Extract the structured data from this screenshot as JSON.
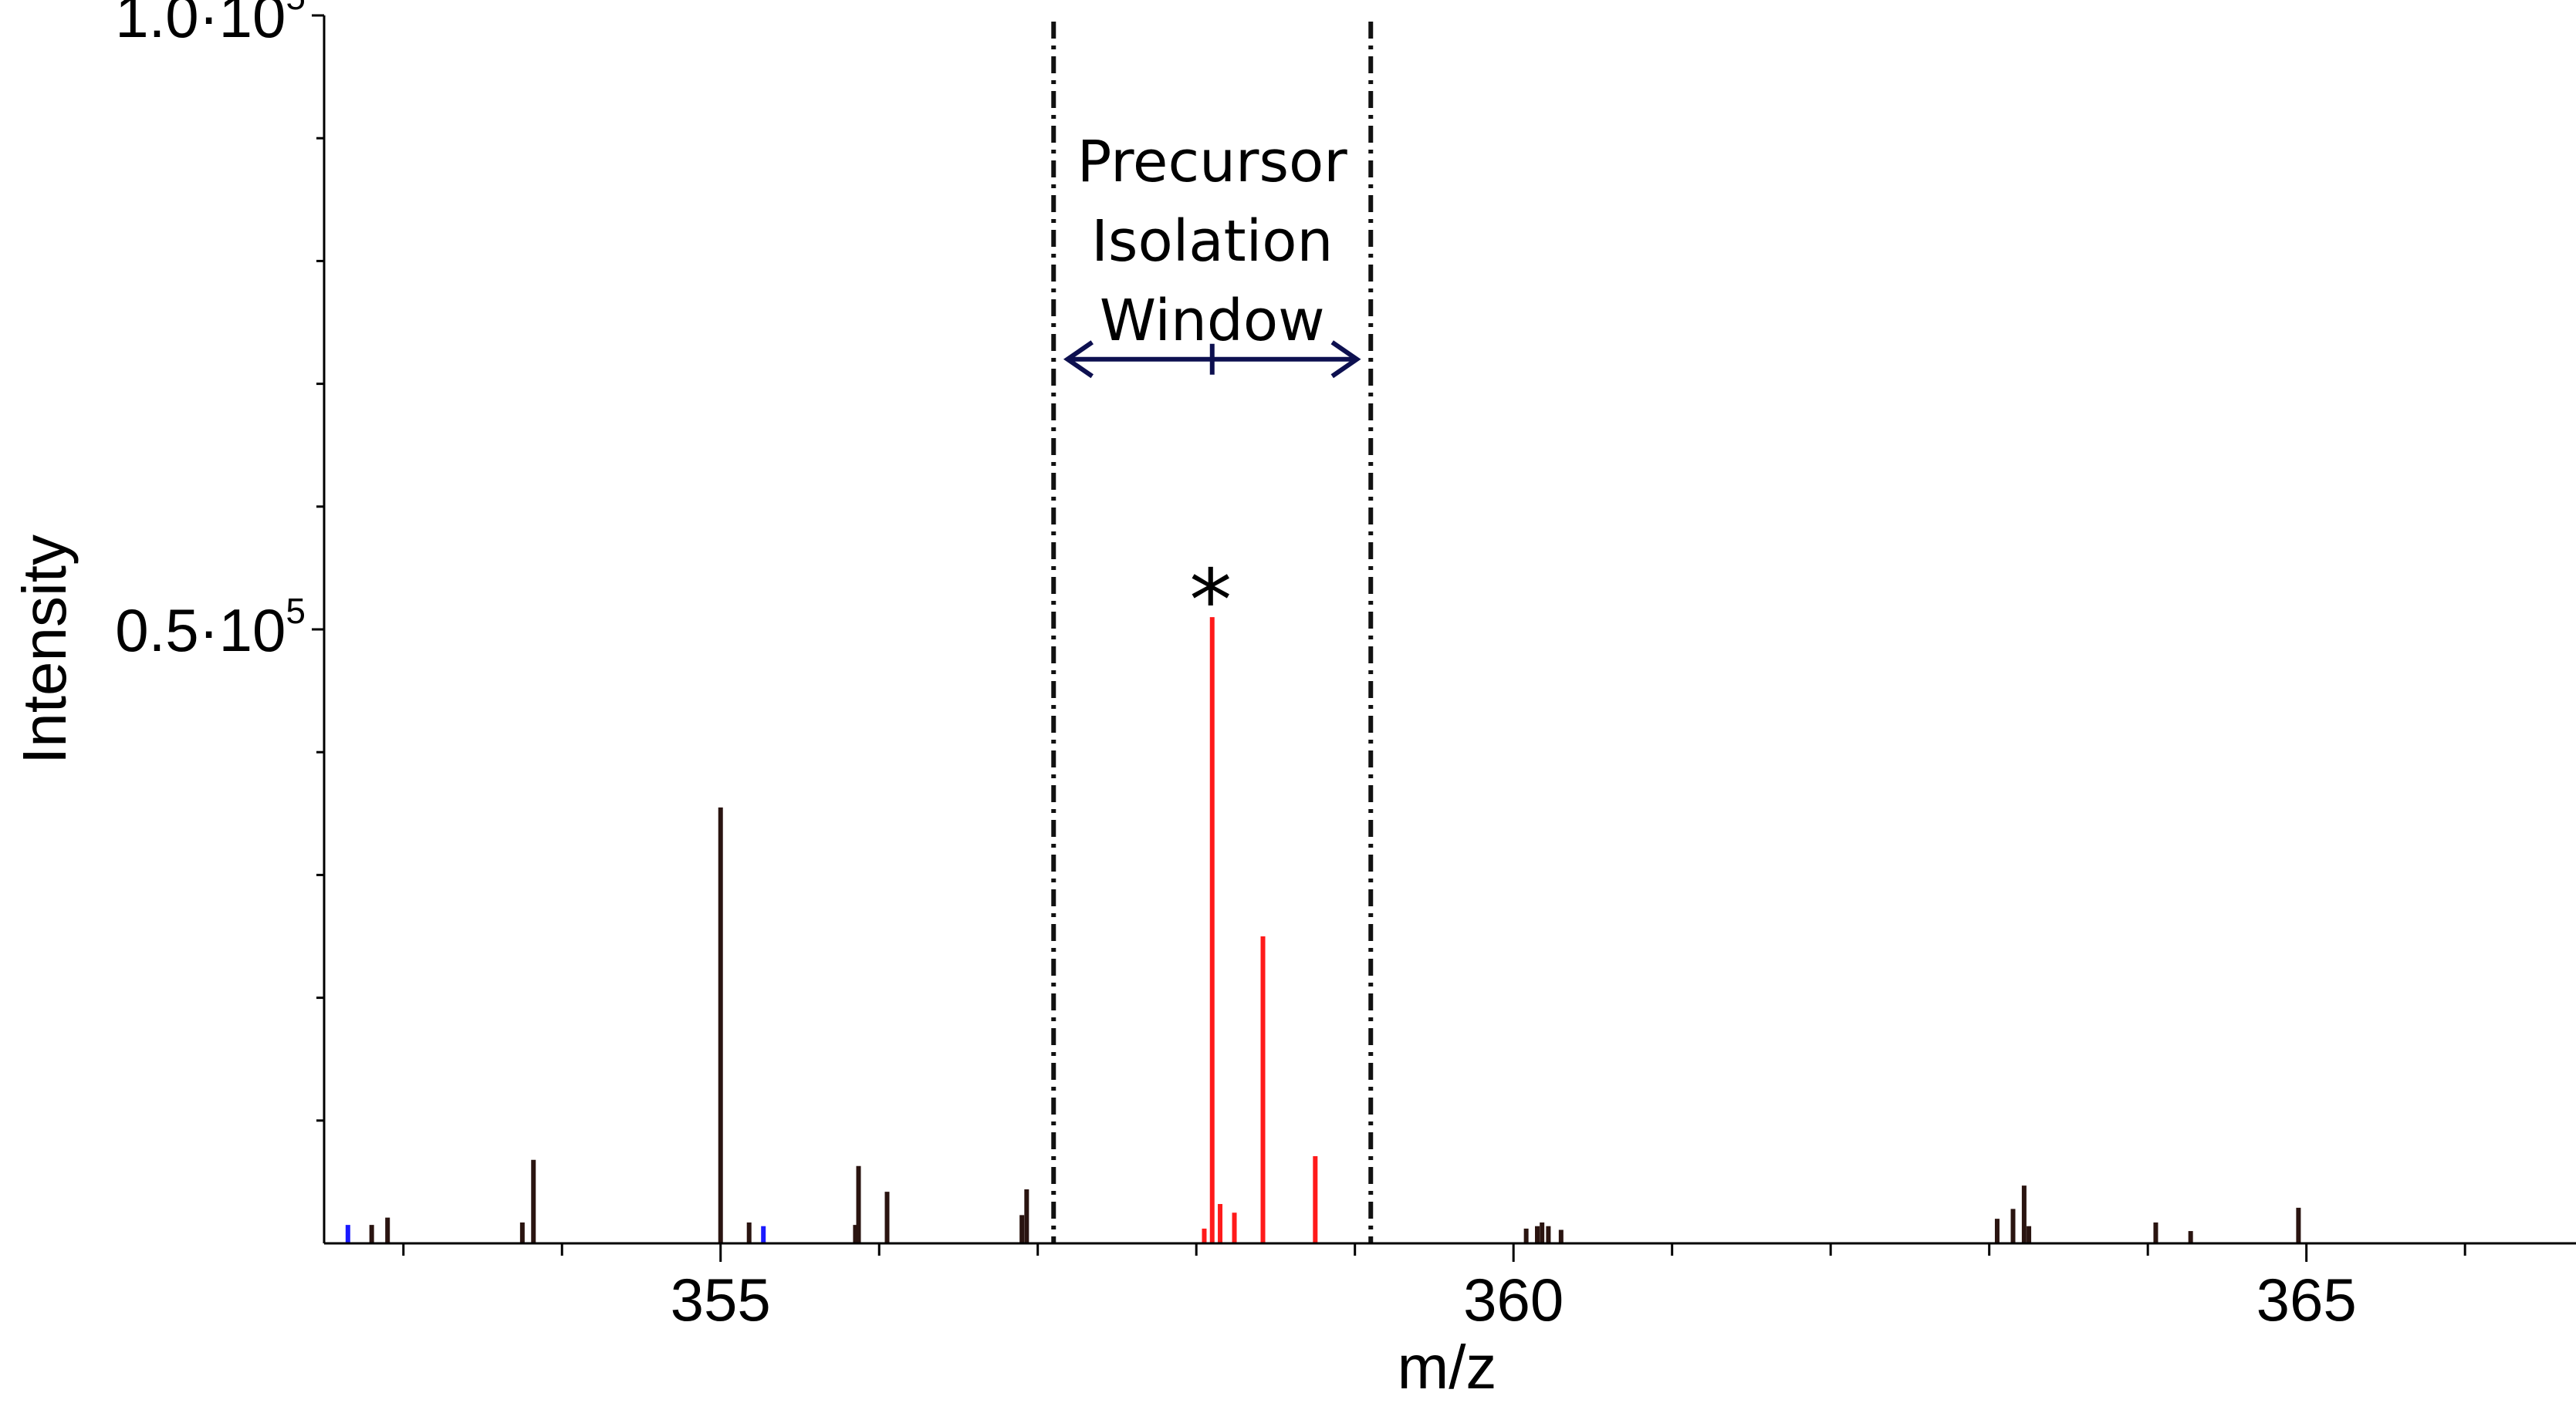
{
  "chart_data": {
    "type": "bar",
    "xlabel": "m/z",
    "ylabel": "Intensity",
    "xlim": [
      352.5,
      366.7
    ],
    "ylim": [
      0,
      100000
    ],
    "x_ticks": [
      355,
      360,
      365
    ],
    "y_ticks": [
      {
        "value": 100000,
        "mantissa": "1.0·10",
        "exponent": "5"
      },
      {
        "value": 50000,
        "mantissa": "0.5·10",
        "exponent": "5"
      }
    ],
    "colors": {
      "black": "#2a1410",
      "red": "#ff1a1a",
      "blue": "#1a1aff",
      "window": "#111111",
      "arrow": "#0d1050"
    },
    "isolation_window": {
      "x_min": 357.1,
      "x_max": 359.1,
      "center": 358.1,
      "arrow_level": 72000,
      "label_lines": [
        "Precursor",
        "Isolation",
        "Window"
      ]
    },
    "annotations": [
      {
        "text": "*",
        "x": 358.1,
        "y": 55000
      }
    ],
    "series": [
      {
        "color": "blue",
        "peaks": [
          {
            "x": 352.65,
            "y": 1500
          },
          {
            "x": 355.27,
            "y": 1400
          }
        ]
      },
      {
        "color": "black",
        "peaks": [
          {
            "x": 352.8,
            "y": 1500
          },
          {
            "x": 352.9,
            "y": 2100
          },
          {
            "x": 353.75,
            "y": 1700
          },
          {
            "x": 353.82,
            "y": 6800
          },
          {
            "x": 355.0,
            "y": 35500
          },
          {
            "x": 355.18,
            "y": 1700
          },
          {
            "x": 355.85,
            "y": 1500
          },
          {
            "x": 355.87,
            "y": 6300
          },
          {
            "x": 356.05,
            "y": 4200
          },
          {
            "x": 356.9,
            "y": 2300
          },
          {
            "x": 356.93,
            "y": 4400
          },
          {
            "x": 360.08,
            "y": 1200
          },
          {
            "x": 360.15,
            "y": 1400
          },
          {
            "x": 360.18,
            "y": 1700
          },
          {
            "x": 360.22,
            "y": 1400
          },
          {
            "x": 360.3,
            "y": 1100
          },
          {
            "x": 363.05,
            "y": 2000
          },
          {
            "x": 363.15,
            "y": 2800
          },
          {
            "x": 363.22,
            "y": 4700
          },
          {
            "x": 363.25,
            "y": 1400
          },
          {
            "x": 364.05,
            "y": 1700
          },
          {
            "x": 364.27,
            "y": 1000
          },
          {
            "x": 364.95,
            "y": 2900
          }
        ]
      },
      {
        "color": "red",
        "peaks": [
          {
            "x": 358.05,
            "y": 1200
          },
          {
            "x": 358.1,
            "y": 51000
          },
          {
            "x": 358.15,
            "y": 3200
          },
          {
            "x": 358.24,
            "y": 2500
          },
          {
            "x": 358.42,
            "y": 25000
          },
          {
            "x": 358.75,
            "y": 7100
          }
        ]
      }
    ]
  }
}
